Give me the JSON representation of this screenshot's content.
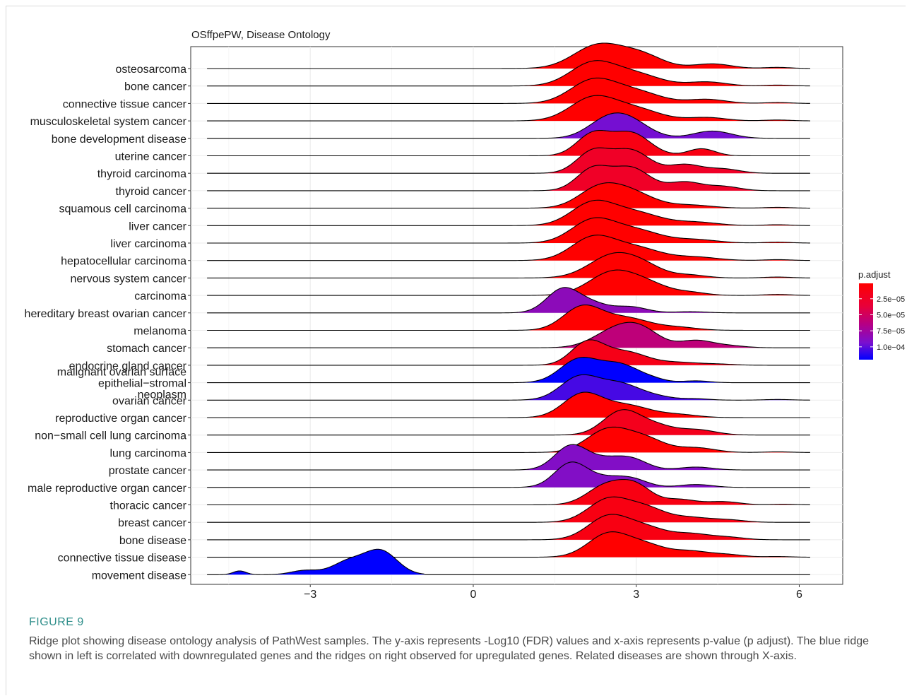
{
  "figure": {
    "label": "FIGURE 9",
    "caption": "Ridge plot showing disease ontology analysis of PathWest samples. The y-axis represents -Log10 (FDR) values and x-axis represents p-value (p adjust). The blue ridge shown in left is correlated with downregulated genes and the ridges on right observed for upregulated genes. Related diseases are shown through X-axis."
  },
  "chart_data": {
    "type": "ridgeline",
    "title": "OSffpePW, Disease Ontology",
    "xlabel": "",
    "ylabel": "",
    "xlim": [
      -5.2,
      6.8
    ],
    "x_ticks": [
      -3,
      0,
      3,
      6
    ],
    "x_tick_labels": [
      "−3",
      "0",
      "3",
      "6"
    ],
    "grid": true,
    "legend": {
      "title": "p.adjust",
      "position": "right",
      "ticks": [
        "2.5e−05",
        "5.0e−05",
        "7.5e−05",
        "1.0e−04"
      ],
      "tick_values": [
        2.5e-05,
        5e-05,
        7.5e-05,
        0.0001
      ],
      "range": [
        1e-06,
        0.00012
      ],
      "colors": [
        "#ff0000",
        "#0000ff"
      ]
    },
    "ridges": [
      {
        "label": "osteosarcoma",
        "p_adjust": 1e-06,
        "xmin": -4.9,
        "xmax": 6.2,
        "peaks": [
          [
            2.3,
            1.0,
            0.45
          ],
          [
            3.1,
            0.55,
            0.4
          ],
          [
            4.4,
            0.2,
            0.35
          ],
          [
            5.6,
            0.05,
            0.25
          ]
        ]
      },
      {
        "label": "bone cancer",
        "p_adjust": 1e-06,
        "xmin": -4.9,
        "xmax": 6.2,
        "peaks": [
          [
            2.2,
            1.0,
            0.42
          ],
          [
            3.0,
            0.5,
            0.45
          ],
          [
            4.3,
            0.18,
            0.35
          ],
          [
            5.6,
            0.04,
            0.25
          ]
        ]
      },
      {
        "label": "connective tissue cancer",
        "p_adjust": 1e-06,
        "xmin": -4.9,
        "xmax": 6.2,
        "peaks": [
          [
            2.2,
            1.0,
            0.42
          ],
          [
            3.0,
            0.5,
            0.45
          ],
          [
            4.3,
            0.18,
            0.35
          ],
          [
            5.6,
            0.04,
            0.25
          ]
        ]
      },
      {
        "label": "musculoskeletal system cancer",
        "p_adjust": 1e-06,
        "xmin": -4.9,
        "xmax": 6.2,
        "peaks": [
          [
            2.2,
            1.0,
            0.42
          ],
          [
            3.0,
            0.5,
            0.45
          ],
          [
            4.3,
            0.15,
            0.35
          ],
          [
            5.6,
            0.04,
            0.25
          ]
        ]
      },
      {
        "label": "bone development disease",
        "p_adjust": 9.5e-05,
        "xmin": -4.9,
        "xmax": 6.2,
        "peaks": [
          [
            2.4,
            0.9,
            0.35
          ],
          [
            2.85,
            1.2,
            0.38
          ],
          [
            4.4,
            0.5,
            0.35
          ]
        ]
      },
      {
        "label": "uterine cancer",
        "p_adjust": 1.2e-05,
        "xmin": -4.9,
        "xmax": 6.2,
        "peaks": [
          [
            2.2,
            0.75,
            0.3
          ],
          [
            2.9,
            0.8,
            0.35
          ],
          [
            4.2,
            0.25,
            0.25
          ]
        ]
      },
      {
        "label": "thyroid carcinoma",
        "p_adjust": 2.5e-05,
        "xmin": -4.9,
        "xmax": 6.2,
        "peaks": [
          [
            2.2,
            0.75,
            0.3
          ],
          [
            2.9,
            0.8,
            0.35
          ],
          [
            3.9,
            0.3,
            0.3
          ],
          [
            4.6,
            0.15,
            0.3
          ]
        ]
      },
      {
        "label": "thyroid cancer",
        "p_adjust": 2.5e-05,
        "xmin": -4.9,
        "xmax": 6.2,
        "peaks": [
          [
            2.2,
            0.75,
            0.3
          ],
          [
            2.9,
            0.8,
            0.35
          ],
          [
            3.9,
            0.3,
            0.3
          ],
          [
            4.6,
            0.15,
            0.3
          ]
        ]
      },
      {
        "label": "squamous cell carcinoma",
        "p_adjust": 1e-06,
        "xmin": -4.9,
        "xmax": 6.2,
        "peaks": [
          [
            2.3,
            0.9,
            0.38
          ],
          [
            2.9,
            0.75,
            0.42
          ],
          [
            4.0,
            0.15,
            0.4
          ],
          [
            5.6,
            0.04,
            0.25
          ]
        ]
      },
      {
        "label": "liver cancer",
        "p_adjust": 1e-06,
        "xmin": -4.9,
        "xmax": 6.2,
        "peaks": [
          [
            2.2,
            1.0,
            0.4
          ],
          [
            3.0,
            0.55,
            0.45
          ],
          [
            4.1,
            0.15,
            0.4
          ],
          [
            5.6,
            0.04,
            0.25
          ]
        ]
      },
      {
        "label": "liver carcinoma",
        "p_adjust": 1e-06,
        "xmin": -4.9,
        "xmax": 6.2,
        "peaks": [
          [
            2.2,
            1.0,
            0.4
          ],
          [
            3.0,
            0.55,
            0.45
          ],
          [
            4.1,
            0.15,
            0.4
          ],
          [
            5.6,
            0.04,
            0.25
          ]
        ]
      },
      {
        "label": "hepatocellular carcinoma",
        "p_adjust": 1e-06,
        "xmin": -4.9,
        "xmax": 6.2,
        "peaks": [
          [
            2.2,
            1.0,
            0.4
          ],
          [
            3.0,
            0.55,
            0.45
          ],
          [
            4.1,
            0.15,
            0.4
          ],
          [
            5.6,
            0.04,
            0.25
          ]
        ]
      },
      {
        "label": "nervous system cancer",
        "p_adjust": 1e-06,
        "xmin": -4.9,
        "xmax": 6.2,
        "peaks": [
          [
            2.6,
            1.0,
            0.45
          ],
          [
            3.2,
            0.3,
            0.35
          ],
          [
            4.0,
            0.12,
            0.3
          ],
          [
            5.6,
            0.04,
            0.25
          ]
        ]
      },
      {
        "label": "carcinoma",
        "p_adjust": 1e-06,
        "xmin": -4.9,
        "xmax": 6.2,
        "peaks": [
          [
            2.6,
            1.0,
            0.45
          ],
          [
            3.3,
            0.3,
            0.35
          ],
          [
            4.0,
            0.12,
            0.3
          ],
          [
            5.6,
            0.04,
            0.25
          ]
        ]
      },
      {
        "label": "hereditary breast ovarian cancer",
        "p_adjust": 8.5e-05,
        "xmin": -4.9,
        "xmax": 6.2,
        "peaks": [
          [
            1.65,
            1.0,
            0.3
          ],
          [
            2.2,
            0.35,
            0.3
          ],
          [
            2.9,
            0.25,
            0.3
          ],
          [
            4.0,
            0.05,
            0.3
          ]
        ]
      },
      {
        "label": "melanoma",
        "p_adjust": 1e-06,
        "xmin": -4.9,
        "xmax": 6.2,
        "peaks": [
          [
            2.0,
            1.0,
            0.35
          ],
          [
            2.8,
            0.55,
            0.45
          ],
          [
            3.8,
            0.12,
            0.35
          ]
        ]
      },
      {
        "label": "stomach cancer",
        "p_adjust": 6e-05,
        "xmin": -4.9,
        "xmax": 6.2,
        "peaks": [
          [
            2.6,
            0.8,
            0.4
          ],
          [
            3.1,
            0.75,
            0.35
          ],
          [
            4.1,
            0.35,
            0.3
          ],
          [
            4.7,
            0.1,
            0.3
          ]
        ]
      },
      {
        "label": "endocrine gland cancer",
        "p_adjust": 1.5e-05,
        "xmin": -4.9,
        "xmax": 6.2,
        "peaks": [
          [
            2.1,
            1.0,
            0.3
          ],
          [
            2.8,
            0.6,
            0.4
          ],
          [
            3.8,
            0.12,
            0.35
          ],
          [
            4.5,
            0.05,
            0.3
          ]
        ]
      },
      {
        "label": "malignant ovarian surface epithelial−stromal neoplasm",
        "p_adjust": 0.00012,
        "xmin": -4.9,
        "xmax": 6.2,
        "peaks": [
          [
            1.95,
            1.0,
            0.35
          ],
          [
            2.7,
            0.75,
            0.35
          ],
          [
            3.3,
            0.12,
            0.25
          ],
          [
            4.1,
            0.08,
            0.25
          ]
        ]
      },
      {
        "label": "ovarian cancer",
        "p_adjust": 0.000105,
        "xmin": -4.9,
        "xmax": 6.2,
        "peaks": [
          [
            1.95,
            1.0,
            0.35
          ],
          [
            2.7,
            0.7,
            0.38
          ],
          [
            3.4,
            0.12,
            0.3
          ],
          [
            4.1,
            0.06,
            0.25
          ],
          [
            5.6,
            0.03,
            0.25
          ]
        ]
      },
      {
        "label": "reproductive organ cancer",
        "p_adjust": 1e-06,
        "xmin": -4.9,
        "xmax": 6.2,
        "peaks": [
          [
            2.0,
            1.0,
            0.35
          ],
          [
            2.8,
            0.55,
            0.45
          ],
          [
            3.8,
            0.12,
            0.35
          ]
        ]
      },
      {
        "label": "non−small cell lung carcinoma",
        "p_adjust": 1.8e-05,
        "xmin": -4.9,
        "xmax": 6.2,
        "peaks": [
          [
            2.75,
            1.0,
            0.35
          ],
          [
            3.4,
            0.3,
            0.3
          ],
          [
            4.1,
            0.22,
            0.35
          ]
        ]
      },
      {
        "label": "lung carcinoma",
        "p_adjust": 1e-06,
        "xmin": -4.9,
        "xmax": 6.2,
        "peaks": [
          [
            2.5,
            1.0,
            0.4
          ],
          [
            3.2,
            0.5,
            0.35
          ],
          [
            4.1,
            0.2,
            0.35
          ],
          [
            5.6,
            0.03,
            0.25
          ]
        ]
      },
      {
        "label": "prostate cancer",
        "p_adjust": 9e-05,
        "xmin": -4.9,
        "xmax": 6.2,
        "peaks": [
          [
            1.8,
            1.0,
            0.3
          ],
          [
            2.4,
            0.35,
            0.3
          ],
          [
            2.9,
            0.45,
            0.3
          ],
          [
            4.1,
            0.12,
            0.3
          ]
        ]
      },
      {
        "label": "male reproductive organ cancer",
        "p_adjust": 9e-05,
        "xmin": -4.9,
        "xmax": 6.2,
        "peaks": [
          [
            1.8,
            1.0,
            0.3
          ],
          [
            2.4,
            0.3,
            0.3
          ],
          [
            2.9,
            0.35,
            0.3
          ],
          [
            4.1,
            0.12,
            0.3
          ]
        ]
      },
      {
        "label": "thoracic cancer",
        "p_adjust": 1.2e-05,
        "xmin": -4.9,
        "xmax": 6.2,
        "peaks": [
          [
            2.45,
            0.9,
            0.35
          ],
          [
            3.0,
            0.8,
            0.3
          ],
          [
            3.8,
            0.25,
            0.3
          ],
          [
            4.6,
            0.15,
            0.3
          ],
          [
            5.7,
            0.03,
            0.25
          ]
        ]
      },
      {
        "label": "breast cancer",
        "p_adjust": 1.2e-05,
        "xmin": -4.9,
        "xmax": 6.2,
        "peaks": [
          [
            2.5,
            1.0,
            0.38
          ],
          [
            3.2,
            0.55,
            0.35
          ],
          [
            4.0,
            0.2,
            0.35
          ],
          [
            4.7,
            0.1,
            0.3
          ]
        ]
      },
      {
        "label": "bone disease",
        "p_adjust": 1.2e-05,
        "xmin": -4.9,
        "xmax": 6.2,
        "peaks": [
          [
            2.5,
            1.0,
            0.38
          ],
          [
            3.2,
            0.45,
            0.35
          ],
          [
            4.0,
            0.25,
            0.35
          ],
          [
            4.7,
            0.1,
            0.3
          ]
        ]
      },
      {
        "label": "connective tissue disease",
        "p_adjust": 1e-06,
        "xmin": -4.9,
        "xmax": 6.2,
        "peaks": [
          [
            2.5,
            1.0,
            0.38
          ],
          [
            3.2,
            0.45,
            0.35
          ],
          [
            4.0,
            0.25,
            0.35
          ],
          [
            4.7,
            0.1,
            0.3
          ],
          [
            5.6,
            0.03,
            0.25
          ]
        ]
      },
      {
        "label": "movement disease",
        "p_adjust": 0.00012,
        "xmin": -4.9,
        "xmax": -0.9,
        "peaks": [
          [
            -4.3,
            0.16,
            0.12
          ],
          [
            -3.1,
            0.18,
            0.25
          ],
          [
            -2.3,
            0.55,
            0.3
          ],
          [
            -1.7,
            1.0,
            0.3
          ]
        ]
      }
    ]
  }
}
